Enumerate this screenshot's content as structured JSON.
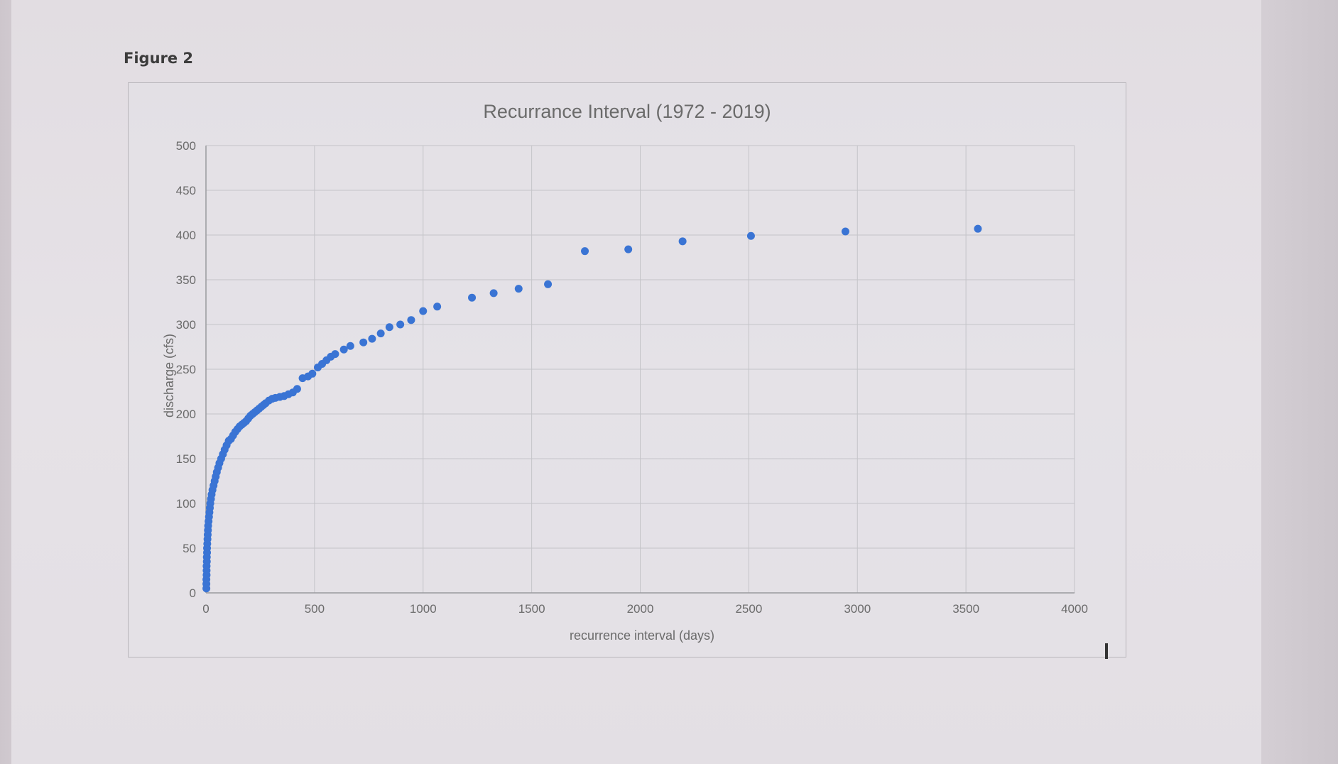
{
  "figure_label": "Figure 2",
  "colors": {
    "series": "#3a74d4",
    "grid": "#c4c4c8",
    "axis": "#9a9a9e",
    "text": "#6b6b6b"
  },
  "chart_data": {
    "type": "scatter",
    "title": "Recurrance Interval (1972 - 2019)",
    "xlabel": "recurrence interval (days)",
    "ylabel": "discharge (cfs)",
    "xlim": [
      0,
      4000
    ],
    "ylim": [
      0,
      500
    ],
    "xticks": [
      "0",
      "500",
      "1000",
      "1500",
      "2000",
      "2500",
      "3000",
      "3500",
      "4000"
    ],
    "yticks": [
      "0",
      "50",
      "100",
      "150",
      "200",
      "250",
      "300",
      "350",
      "400",
      "450",
      "500"
    ],
    "grid": true,
    "legend": "none",
    "x": [
      2,
      2,
      2,
      3,
      3,
      3,
      4,
      4,
      5,
      5,
      6,
      7,
      8,
      9,
      10,
      12,
      14,
      16,
      18,
      20,
      23,
      26,
      30,
      35,
      40,
      45,
      50,
      56,
      62,
      70,
      78,
      86,
      95,
      105,
      115,
      125,
      135,
      145,
      155,
      165,
      175,
      185,
      195,
      205,
      215,
      225,
      235,
      245,
      255,
      265,
      275,
      290,
      305,
      320,
      340,
      360,
      380,
      400,
      420,
      445,
      470,
      490,
      515,
      535,
      555,
      575,
      595,
      635,
      665,
      725,
      765,
      805,
      845,
      895,
      945,
      1000,
      1065,
      1225,
      1325,
      1440,
      1575,
      1745,
      1945,
      2195,
      2510,
      2945,
      3555
    ],
    "y": [
      5,
      10,
      15,
      20,
      25,
      30,
      35,
      40,
      45,
      50,
      55,
      60,
      65,
      70,
      75,
      80,
      85,
      90,
      95,
      100,
      105,
      110,
      115,
      120,
      125,
      130,
      135,
      140,
      145,
      150,
      155,
      160,
      165,
      170,
      172,
      176,
      180,
      183,
      186,
      188,
      190,
      192,
      195,
      198,
      200,
      202,
      204,
      206,
      208,
      210,
      212,
      215,
      217,
      218,
      219,
      220,
      222,
      224,
      228,
      240,
      242,
      245,
      252,
      256,
      260,
      264,
      267,
      272,
      276,
      280,
      284,
      290,
      297,
      300,
      305,
      315,
      320,
      330,
      335,
      340,
      345,
      382,
      384,
      393,
      399,
      404,
      407
    ]
  }
}
